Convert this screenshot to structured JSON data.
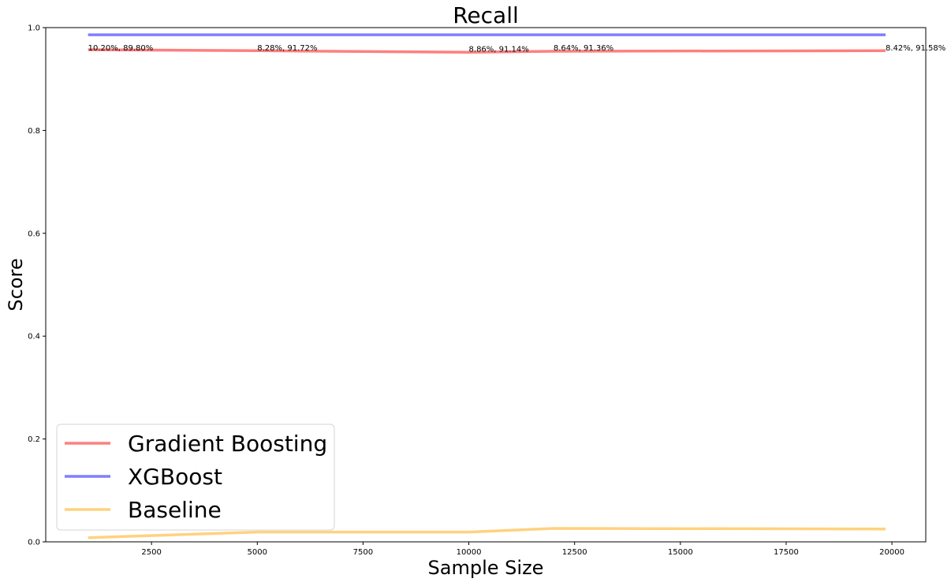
{
  "chart_data": {
    "type": "line",
    "title": "Recall",
    "xlabel": "Sample Size",
    "ylabel": "Score",
    "xlim": [
      0,
      20800
    ],
    "ylim": [
      0,
      1.0
    ],
    "xticks": [
      2500,
      5000,
      7500,
      10000,
      12500,
      15000,
      17500,
      20000
    ],
    "yticks": [
      0.0,
      0.2,
      0.4,
      0.6,
      0.8,
      1.0
    ],
    "grid": false,
    "legend_position": "lower-left",
    "series": [
      {
        "name": "Gradient Boosting",
        "color": "#ff7f7f",
        "x": [
          1000,
          5000,
          10000,
          12000,
          19850
        ],
        "y": [
          0.957,
          0.955,
          0.952,
          0.954,
          0.955
        ]
      },
      {
        "name": "XGBoost",
        "color": "#7f7fff",
        "x": [
          1000,
          5000,
          10000,
          12000,
          19850
        ],
        "y": [
          0.986,
          0.986,
          0.986,
          0.986,
          0.986
        ]
      },
      {
        "name": "Baseline",
        "color": "#ffd27f",
        "x": [
          1000,
          5000,
          10000,
          12000,
          19850
        ],
        "y": [
          0.008,
          0.019,
          0.019,
          0.026,
          0.025
        ]
      }
    ],
    "annotations": [
      {
        "text": "10.20%, 89.80%",
        "x": 1000,
        "y": 0.957
      },
      {
        "text": "8.28%, 91.72%",
        "x": 5000,
        "y": 0.957
      },
      {
        "text": "8.86%, 91.14%",
        "x": 10000,
        "y": 0.955
      },
      {
        "text": "8.64%, 91.36%",
        "x": 12000,
        "y": 0.957
      },
      {
        "text": "8.42%, 91.58%",
        "x": 19850,
        "y": 0.957
      }
    ]
  }
}
